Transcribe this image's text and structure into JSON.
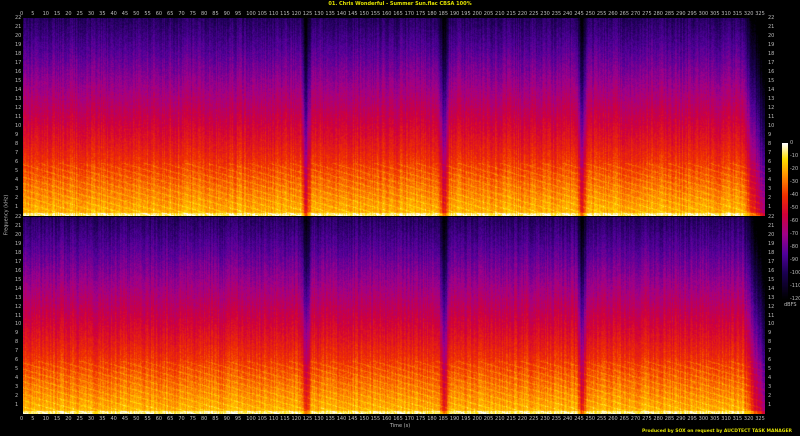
{
  "title": "01. Chris Wonderful - Summer Sun.flac CBSA 100%",
  "footer": "Produced by SOX on request by AUCDTECT TASK MANAGER",
  "chart_data": {
    "type": "heatmap",
    "title": "01. Chris Wonderful - Summer Sun.flac CBSA 100%",
    "xlabel": "Time (s)",
    "ylabel": "Frequency (kHz)",
    "xlim": [
      0,
      328
    ],
    "ylim": [
      0,
      22
    ],
    "x_ticks": [
      0,
      5,
      10,
      15,
      20,
      25,
      30,
      35,
      40,
      45,
      50,
      55,
      60,
      65,
      70,
      75,
      80,
      85,
      90,
      95,
      100,
      105,
      110,
      115,
      120,
      125,
      130,
      135,
      140,
      145,
      150,
      155,
      160,
      165,
      170,
      175,
      180,
      185,
      190,
      195,
      200,
      205,
      210,
      215,
      220,
      225,
      230,
      235,
      240,
      245,
      250,
      255,
      260,
      265,
      270,
      275,
      280,
      285,
      290,
      295,
      300,
      305,
      310,
      315,
      320,
      325
    ],
    "y_ticks": [
      1,
      2,
      3,
      4,
      5,
      6,
      7,
      8,
      9,
      10,
      11,
      12,
      13,
      14,
      15,
      16,
      17,
      18,
      19,
      20,
      21,
      22
    ],
    "channels": 2,
    "quiet_times_s": [
      125,
      186,
      247
    ],
    "colorbar": {
      "label": "dBFS",
      "ticks": [
        0,
        -10,
        -20,
        -30,
        -40,
        -50,
        -60,
        -70,
        -80,
        -90,
        -100,
        -110,
        -120
      ],
      "range": [
        -120,
        0
      ]
    },
    "colormap": [
      "#000000",
      "#1a0050",
      "#50009a",
      "#a0008a",
      "#d0003a",
      "#f03000",
      "#ff9000",
      "#ffe000",
      "#ffffff"
    ]
  }
}
